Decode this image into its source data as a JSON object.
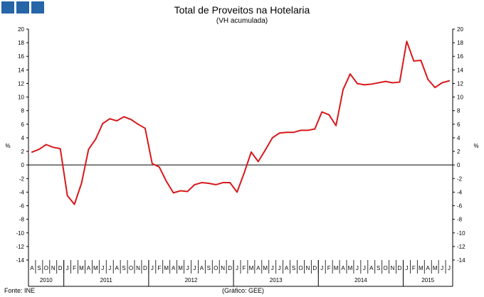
{
  "chart_data": {
    "type": "line",
    "title": "Total de Proveitos na Hotelaria",
    "subtitle": "(VH acumulada)",
    "ylabel": "%",
    "ylim": [
      -14,
      20
    ],
    "ytick_step": 2,
    "grid": false,
    "months": [
      "A",
      "S",
      "O",
      "N",
      "D",
      "J",
      "F",
      "M",
      "A",
      "M",
      "J",
      "J",
      "A",
      "S",
      "O",
      "N",
      "D",
      "J",
      "F",
      "M",
      "A",
      "M",
      "J",
      "J",
      "A",
      "S",
      "O",
      "N",
      "D",
      "J",
      "F",
      "M",
      "A",
      "M",
      "J",
      "J",
      "A",
      "S",
      "O",
      "N",
      "D",
      "J",
      "F",
      "M",
      "A",
      "M",
      "J",
      "J",
      "A",
      "S",
      "O",
      "N",
      "D",
      "J",
      "F",
      "M",
      "A",
      "M",
      "J",
      "J"
    ],
    "years": [
      {
        "label": "2010",
        "start": 0,
        "end": 5
      },
      {
        "label": "2011",
        "start": 5,
        "end": 17
      },
      {
        "label": "2012",
        "start": 17,
        "end": 29
      },
      {
        "label": "2013",
        "start": 29,
        "end": 41
      },
      {
        "label": "2014",
        "start": 41,
        "end": 53
      },
      {
        "label": "2015",
        "start": 53,
        "end": 60
      }
    ],
    "series": [
      {
        "color": "#d7191c",
        "values": [
          1.9,
          2.3,
          3.0,
          2.6,
          2.4,
          -4.5,
          -5.8,
          -2.7,
          2.3,
          3.8,
          6.1,
          6.8,
          6.5,
          7.1,
          6.7,
          6.0,
          5.4,
          0.2,
          -0.3,
          -2.4,
          -4.1,
          -3.8,
          -3.9,
          -2.9,
          -2.6,
          -2.7,
          -2.9,
          -2.6,
          -2.6,
          -4.0,
          -1.2,
          1.9,
          0.5,
          2.2,
          4.0,
          4.7,
          4.8,
          4.8,
          5.1,
          5.1,
          5.3,
          7.8,
          7.4,
          5.8,
          11.1,
          13.4,
          12.0,
          11.8,
          11.9,
          12.1,
          12.3,
          12.1,
          12.2,
          18.2,
          15.3,
          15.4,
          12.6,
          11.4,
          12.1,
          12.4
        ]
      }
    ]
  },
  "footer": {
    "source": "Fonte: INE",
    "credit": "(Gráfico: GEE)"
  },
  "colors": {
    "logo": "#2565a8",
    "line": "#d7191c"
  }
}
